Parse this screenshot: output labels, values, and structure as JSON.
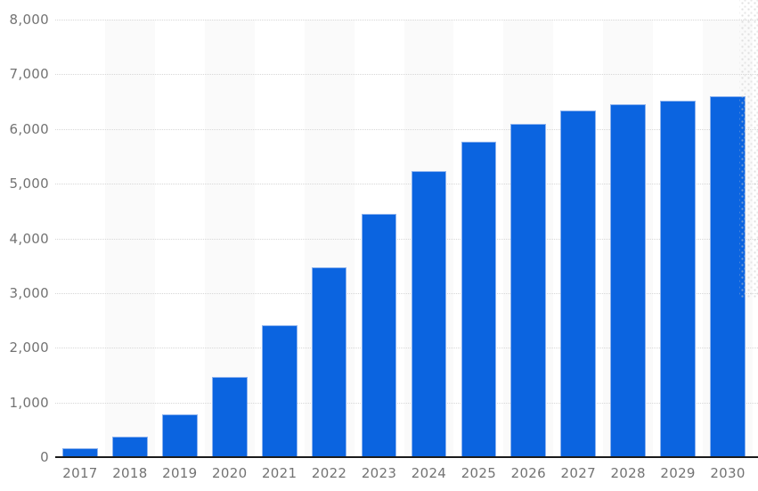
{
  "chart_data": {
    "type": "bar",
    "title": "",
    "xlabel": "",
    "ylabel": "",
    "categories": [
      "2017",
      "2018",
      "2019",
      "2020",
      "2021",
      "2022",
      "2023",
      "2024",
      "2025",
      "2026",
      "2027",
      "2028",
      "2029",
      "2030"
    ],
    "values": [
      170,
      370,
      785,
      1470,
      2410,
      3475,
      4455,
      5230,
      5765,
      6100,
      6335,
      6455,
      6525,
      6600
    ],
    "ylim": [
      0,
      8000
    ],
    "yticks": [
      0,
      1000,
      2000,
      3000,
      4000,
      5000,
      6000,
      7000,
      8000
    ],
    "ytick_labels": [
      "0",
      "1,000",
      "2,000",
      "3,000",
      "4,000",
      "5,000",
      "6,000",
      "7,000",
      "8,000"
    ],
    "grid": "horizontal dotted lines at every 1,000",
    "plot_bands": "alternating vertical bands behind every second category (2018, 2020, 2022, 2024, 2026, 2028, 2030)",
    "legend": "none",
    "bar_width_ratio": 0.71
  },
  "colors": {
    "background": "#ffffff",
    "bar_fill": "#0b64e0",
    "bar_border": "#8cb2ee",
    "grid_line": "#d7d7d7",
    "axis_line": "#1b1b1b",
    "label_text": "#737373",
    "band_fill": "#fafafa",
    "watermark_dot": "#c9c9c9"
  }
}
